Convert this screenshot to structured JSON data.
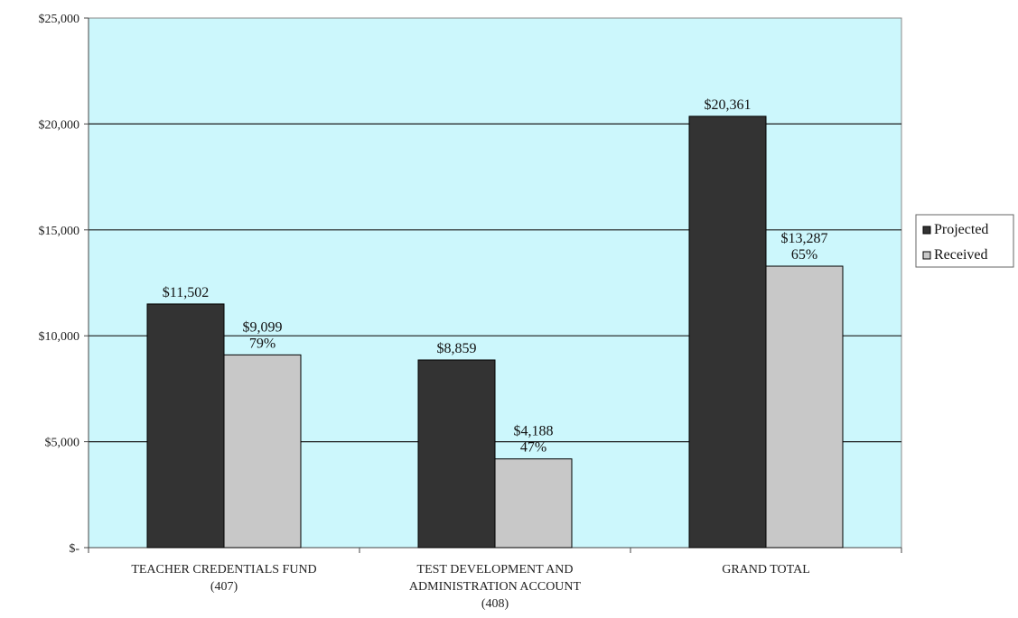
{
  "chart_data": {
    "type": "bar",
    "title": "",
    "xlabel": "",
    "ylabel": "",
    "ylim": [
      0,
      25000
    ],
    "yticks": [
      0,
      5000,
      10000,
      15000,
      20000,
      25000
    ],
    "ytick_labels": [
      "$-",
      "$5,000",
      "$10,000",
      "$15,000",
      "$20,000",
      "$25,000"
    ],
    "grid": true,
    "legend_position": "right",
    "categories": [
      [
        "TEACHER CREDENTIALS FUND",
        "(407)"
      ],
      [
        "TEST DEVELOPMENT AND",
        "ADMINISTRATION ACCOUNT",
        "(408)"
      ],
      [
        "GRAND TOTAL"
      ]
    ],
    "series": [
      {
        "name": "Projected",
        "color": "#333333",
        "values": [
          11502,
          8859,
          20361
        ],
        "labels": [
          [
            "$11,502"
          ],
          [
            "$8,859"
          ],
          [
            "$20,361"
          ]
        ]
      },
      {
        "name": "Received",
        "color": "#c8c8c8",
        "values": [
          9099,
          4188,
          13287
        ],
        "labels": [
          [
            "$9,099",
            "79%"
          ],
          [
            "$4,188",
            "47%"
          ],
          [
            "$13,287",
            "65%"
          ]
        ]
      }
    ],
    "plot_background": "#ccf7fc"
  }
}
